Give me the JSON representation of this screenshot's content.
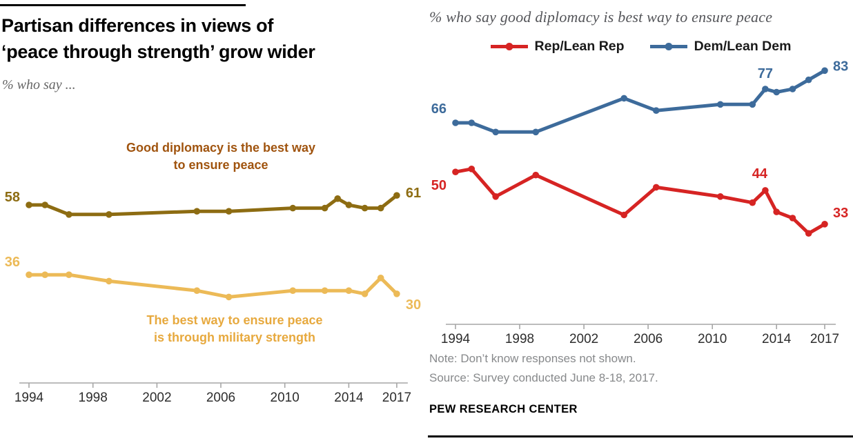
{
  "page": {
    "title_line1": "Partisan differences in views of",
    "title_line2": "‘peace through strength’ grow wider",
    "subtitle": "% who say ...",
    "note_line1": "Note: Don’t know responses not shown.",
    "note_line2": "Source: Survey conducted June 8-18, 2017.",
    "branding": "PEW RESEARCH CENTER"
  },
  "right_header": {
    "title": "% who say good diplomacy is best way to ensure peace",
    "legend": [
      {
        "label": "Rep/Lean Rep",
        "color": "#d62423"
      },
      {
        "label": "Dem/Lean Dem",
        "color": "#3d6b9b"
      }
    ]
  },
  "annotations": {
    "diplomacy_line1": "Good diplomacy is the best way",
    "diplomacy_line2": "to ensure peace",
    "diplomacy_color": "#a0540f",
    "strength_line1": "The best way to ensure peace",
    "strength_line2": "is through military strength",
    "strength_color": "#e7a93e"
  },
  "chart_data": [
    {
      "id": "overall",
      "type": "line",
      "title": "Partisan differences in views of ‘peace through strength’ grow wider",
      "subtitle": "% who say ...",
      "xlabel": "",
      "ylabel": "",
      "xlim": [
        1994,
        2017
      ],
      "x_ticks": [
        1994,
        1998,
        2002,
        2006,
        2010,
        2014,
        2017
      ],
      "ylim": [
        25,
        65
      ],
      "grid": false,
      "legend_position": "none",
      "series": [
        {
          "name": "Good diplomacy is the best way to ensure peace",
          "color": "#8d6c12",
          "points": [
            [
              1994,
              58
            ],
            [
              1995,
              58
            ],
            [
              1996.5,
              55
            ],
            [
              1999,
              55
            ],
            [
              2004.5,
              56
            ],
            [
              2006.5,
              56
            ],
            [
              2010.5,
              57
            ],
            [
              2012.5,
              57
            ],
            [
              2013.3,
              60
            ],
            [
              2014,
              58
            ],
            [
              2015,
              57
            ],
            [
              2016,
              57
            ],
            [
              2017,
              61
            ]
          ],
          "labels": [
            {
              "year": 1994,
              "value": 58,
              "dx": -13,
              "dy": -5,
              "anchor": "end"
            },
            {
              "year": 2017,
              "value": 61,
              "dx": 13,
              "dy": 3,
              "anchor": "start"
            }
          ]
        },
        {
          "name": "The best way to ensure peace is through military strength",
          "color": "#ecba57",
          "points": [
            [
              1994,
              36
            ],
            [
              1995,
              36
            ],
            [
              1996.5,
              36
            ],
            [
              1999,
              34
            ],
            [
              2004.5,
              31
            ],
            [
              2006.5,
              29
            ],
            [
              2010.5,
              31
            ],
            [
              2012.5,
              31
            ],
            [
              2014,
              31
            ],
            [
              2015,
              30
            ],
            [
              2016,
              35
            ],
            [
              2017,
              30
            ]
          ],
          "labels": [
            {
              "year": 1994,
              "value": 36,
              "dx": -13,
              "dy": -12,
              "anchor": "end"
            },
            {
              "year": 2017,
              "value": 30,
              "dx": 13,
              "dy": 22,
              "anchor": "start"
            }
          ]
        }
      ]
    },
    {
      "id": "partisan",
      "type": "line",
      "title": "% who say good diplomacy is best way to ensure peace",
      "xlabel": "",
      "ylabel": "",
      "xlim": [
        1994,
        2017
      ],
      "x_ticks": [
        1994,
        1998,
        2002,
        2006,
        2010,
        2014,
        2017
      ],
      "ylim": [
        25,
        90
      ],
      "grid": false,
      "legend_position": "top",
      "series": [
        {
          "name": "Rep/Lean Rep",
          "color": "#d62423",
          "points": [
            [
              1994,
              50
            ],
            [
              1995,
              51
            ],
            [
              1996.5,
              42
            ],
            [
              1999,
              49
            ],
            [
              2004.5,
              36
            ],
            [
              2006.5,
              45
            ],
            [
              2010.5,
              42
            ],
            [
              2012.5,
              40
            ],
            [
              2013.3,
              44
            ],
            [
              2014,
              37
            ],
            [
              2015,
              35
            ],
            [
              2016,
              30
            ],
            [
              2017,
              33
            ]
          ],
          "labels": [
            {
              "year": 1994,
              "value": 50,
              "dx": -13,
              "dy": 26,
              "anchor": "end"
            },
            {
              "year": 2013.3,
              "value": 44,
              "dx": -8,
              "dy": -18,
              "anchor": "middle"
            },
            {
              "year": 2017,
              "value": 33,
              "dx": 12,
              "dy": -10,
              "anchor": "start"
            }
          ]
        },
        {
          "name": "Dem/Lean Dem",
          "color": "#3d6b9b",
          "points": [
            [
              1994,
              66
            ],
            [
              1995,
              66
            ],
            [
              1996.5,
              63
            ],
            [
              1999,
              63
            ],
            [
              2004.5,
              74
            ],
            [
              2006.5,
              70
            ],
            [
              2010.5,
              72
            ],
            [
              2012.5,
              72
            ],
            [
              2013.3,
              77
            ],
            [
              2014,
              76
            ],
            [
              2015,
              77
            ],
            [
              2016,
              80
            ],
            [
              2017,
              83
            ]
          ],
          "labels": [
            {
              "year": 1994,
              "value": 66,
              "dx": -13,
              "dy": -14,
              "anchor": "end"
            },
            {
              "year": 2013.3,
              "value": 77,
              "dx": 0,
              "dy": -16,
              "anchor": "middle"
            },
            {
              "year": 2017,
              "value": 83,
              "dx": 12,
              "dy": 0,
              "anchor": "start"
            }
          ]
        }
      ]
    }
  ]
}
